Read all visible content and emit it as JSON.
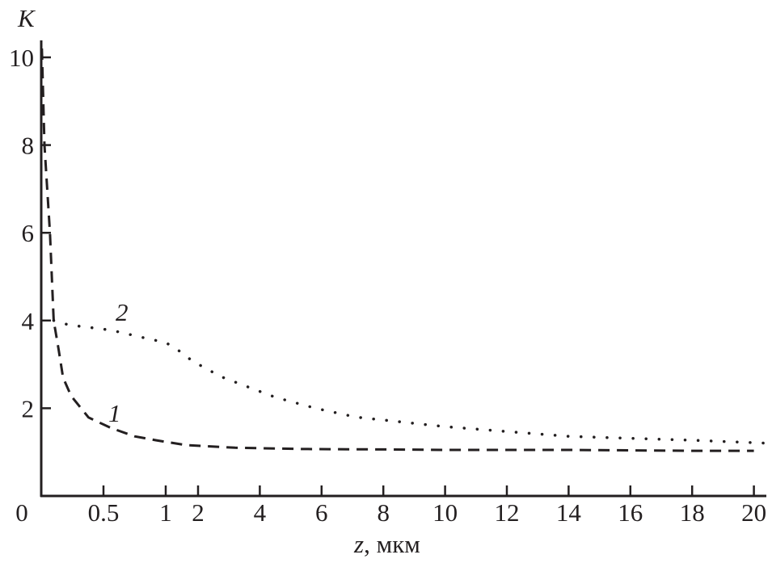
{
  "chart_data": {
    "type": "line",
    "xlabel_var": "z",
    "xlabel_unit": ", мкм",
    "ylabel": "K",
    "xlim": [
      0,
      20.5
    ],
    "ylim": [
      0,
      10.5
    ],
    "x_scale": "broken: 0–1 expanded, 1–20 compressed",
    "x_ticks": [
      {
        "value": 0,
        "label": "0"
      },
      {
        "value": 0.5,
        "label": "0.5"
      },
      {
        "value": 1,
        "label": "1"
      },
      {
        "value": 2,
        "label": "2"
      },
      {
        "value": 4,
        "label": "4"
      },
      {
        "value": 6,
        "label": "6"
      },
      {
        "value": 8,
        "label": "8"
      },
      {
        "value": 10,
        "label": "10"
      },
      {
        "value": 12,
        "label": "12"
      },
      {
        "value": 14,
        "label": "14"
      },
      {
        "value": 16,
        "label": "16"
      },
      {
        "value": 18,
        "label": "18"
      },
      {
        "value": 20,
        "label": "20"
      }
    ],
    "y_ticks": [
      {
        "value": 2,
        "label": "2"
      },
      {
        "value": 4,
        "label": "4"
      },
      {
        "value": 6,
        "label": "6"
      },
      {
        "value": 8,
        "label": "8"
      },
      {
        "value": 10,
        "label": "10"
      }
    ],
    "grid": false,
    "series": [
      {
        "name": "1",
        "style": "dashed",
        "color": "#231f20",
        "x": [
          0.005,
          0.026,
          0.07,
          0.1,
          0.14,
          0.175,
          0.24,
          0.38,
          0.56,
          0.75,
          0.92,
          1.62,
          3.2,
          5.4,
          8,
          10,
          14,
          18,
          20
        ],
        "y": [
          10.2,
          8,
          6,
          4,
          3.33,
          2.7,
          2.28,
          1.79,
          1.55,
          1.36,
          1.27,
          1.16,
          1.1,
          1.07,
          1.06,
          1.05,
          1.05,
          1.03,
          1.03
        ]
      },
      {
        "name": "2",
        "style": "dotted",
        "color": "#231f20",
        "x": [
          0.1,
          0.22,
          0.56,
          0.88,
          1,
          1.43,
          1.82,
          2.74,
          3.6,
          4.5,
          5.8,
          7.1,
          10,
          14,
          18,
          20.5
        ],
        "y": [
          4.0,
          3.9,
          3.78,
          3.57,
          3.5,
          3.3,
          3.08,
          2.72,
          2.49,
          2.25,
          2.0,
          1.8,
          1.58,
          1.36,
          1.27,
          1.2
        ]
      }
    ]
  }
}
